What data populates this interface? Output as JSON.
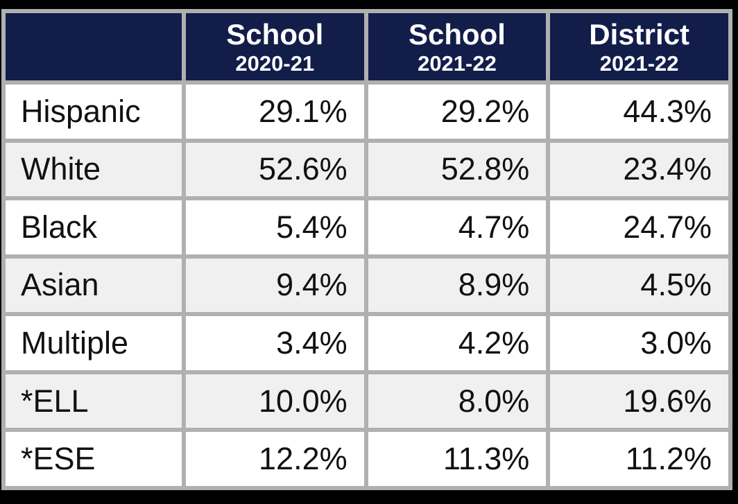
{
  "chart_data": {
    "type": "table",
    "columns": [
      {
        "title": "",
        "subtitle": ""
      },
      {
        "title": "School",
        "subtitle": "2020-21"
      },
      {
        "title": "School",
        "subtitle": "2021-22"
      },
      {
        "title": "District",
        "subtitle": "2021-22"
      }
    ],
    "rows": [
      {
        "label": "Hispanic",
        "values": [
          "29.1%",
          "29.2%",
          "44.3%"
        ]
      },
      {
        "label": "White",
        "values": [
          "52.6%",
          "52.8%",
          "23.4%"
        ]
      },
      {
        "label": "Black",
        "values": [
          "5.4%",
          "4.7%",
          "24.7%"
        ]
      },
      {
        "label": "Asian",
        "values": [
          "9.4%",
          "8.9%",
          "4.5%"
        ]
      },
      {
        "label": "Multiple",
        "values": [
          "3.4%",
          "4.2%",
          "3.0%"
        ]
      },
      {
        "label": "*ELL",
        "values": [
          "10.0%",
          "8.0%",
          "19.6%"
        ]
      },
      {
        "label": "*ESE",
        "values": [
          "12.2%",
          "11.3%",
          "11.2%"
        ]
      }
    ],
    "layout": {
      "row_striping": "white / light-gray alternating, first data row white",
      "value_alignment": "right",
      "label_alignment": "left"
    }
  },
  "colors": {
    "header_bg": "#121d4a",
    "header_text": "#ffffff",
    "border": "#b0b0b0",
    "row_bg": "#ffffff",
    "row_alt_bg": "#f0f0f0",
    "cell_text": "#111111",
    "frame_bg": "#000000"
  }
}
